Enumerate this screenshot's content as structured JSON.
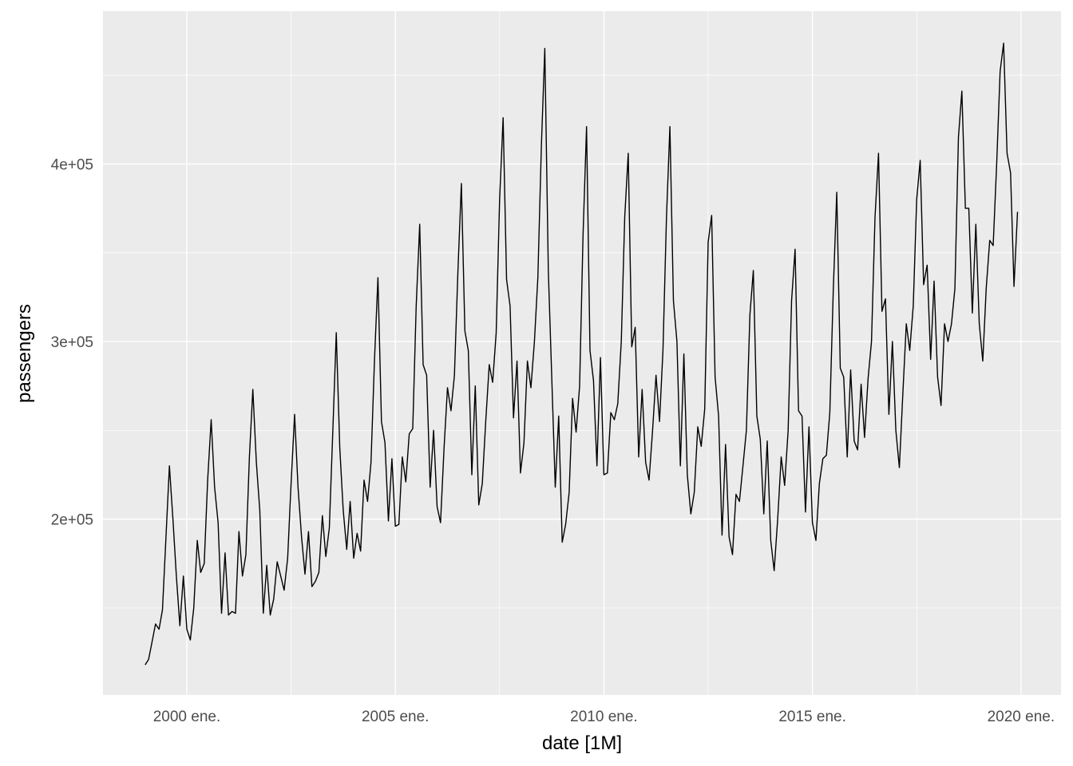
{
  "chart_data": {
    "type": "line",
    "xlabel": "date [1M]",
    "ylabel": "passengers",
    "x_tick_labels": [
      "2000 ene.",
      "2005 ene.",
      "2010 ene.",
      "2015 ene.",
      "2020 ene."
    ],
    "x_tick_years": [
      2000,
      2005,
      2010,
      2015,
      2020
    ],
    "y_tick_labels": [
      "2e+05",
      "3e+05",
      "4e+05"
    ],
    "y_tick_values": [
      200000,
      300000,
      400000
    ],
    "xlim": [
      1997.99,
      2020.96
    ],
    "ylim": [
      101000,
      486000
    ],
    "grid": true,
    "background": "#EBEBEB",
    "line_color": "#000000",
    "frequency": "monthly",
    "series_by_year": [
      {
        "year": 1999,
        "values": [
          118000,
          121000,
          131000,
          141000,
          138000,
          149000,
          190000,
          230000,
          200000,
          168000,
          140000,
          168000
        ]
      },
      {
        "year": 2000,
        "values": [
          138000,
          132000,
          150000,
          188000,
          170000,
          175000,
          222000,
          256000,
          218000,
          198000,
          147000,
          181000
        ]
      },
      {
        "year": 2001,
        "values": [
          146000,
          148000,
          147000,
          193000,
          168000,
          180000,
          235000,
          273000,
          232000,
          205000,
          147000,
          174000
        ]
      },
      {
        "year": 2002,
        "values": [
          146000,
          155000,
          176000,
          168000,
          160000,
          178000,
          220000,
          259000,
          218000,
          190000,
          169000,
          193000
        ]
      },
      {
        "year": 2003,
        "values": [
          162000,
          165000,
          170000,
          202000,
          179000,
          195000,
          250000,
          305000,
          240000,
          205000,
          183000,
          210000
        ]
      },
      {
        "year": 2004,
        "values": [
          178000,
          192000,
          182000,
          222000,
          210000,
          232000,
          290000,
          336000,
          255000,
          243000,
          199000,
          234000
        ]
      },
      {
        "year": 2005,
        "values": [
          196000,
          197000,
          235000,
          221000,
          248000,
          251000,
          320000,
          366000,
          287000,
          281000,
          218000,
          250000
        ]
      },
      {
        "year": 2006,
        "values": [
          207000,
          198000,
          240000,
          274000,
          261000,
          281000,
          340000,
          389000,
          306000,
          295000,
          225000,
          275000
        ]
      },
      {
        "year": 2007,
        "values": [
          208000,
          220000,
          255000,
          287000,
          277000,
          305000,
          380000,
          426000,
          335000,
          320000,
          257000,
          289000
        ]
      },
      {
        "year": 2008,
        "values": [
          226000,
          243000,
          289000,
          274000,
          300000,
          336000,
          410000,
          465000,
          340000,
          280000,
          218000,
          258000
        ]
      },
      {
        "year": 2009,
        "values": [
          187000,
          197000,
          215000,
          268000,
          249000,
          275000,
          360000,
          421000,
          295000,
          278000,
          230000,
          291000
        ]
      },
      {
        "year": 2010,
        "values": [
          225000,
          226000,
          260000,
          256000,
          265000,
          300000,
          370000,
          406000,
          297000,
          308000,
          235000,
          273000
        ]
      },
      {
        "year": 2011,
        "values": [
          232000,
          222000,
          250000,
          281000,
          255000,
          295000,
          370000,
          421000,
          323000,
          300000,
          230000,
          293000
        ]
      },
      {
        "year": 2012,
        "values": [
          225000,
          203000,
          215000,
          252000,
          241000,
          262000,
          356000,
          371000,
          280000,
          258000,
          191000,
          242000
        ]
      },
      {
        "year": 2013,
        "values": [
          190000,
          180000,
          214000,
          210000,
          230000,
          250000,
          315000,
          340000,
          258000,
          245000,
          203000,
          244000
        ]
      },
      {
        "year": 2014,
        "values": [
          188000,
          171000,
          200000,
          235000,
          219000,
          250000,
          323000,
          352000,
          261000,
          258000,
          204000,
          252000
        ]
      },
      {
        "year": 2015,
        "values": [
          198000,
          188000,
          220000,
          234000,
          236000,
          260000,
          330000,
          384000,
          285000,
          280000,
          235000,
          284000
        ]
      },
      {
        "year": 2016,
        "values": [
          244000,
          239000,
          276000,
          246000,
          279000,
          300000,
          370000,
          406000,
          317000,
          324000,
          259000,
          300000
        ]
      },
      {
        "year": 2017,
        "values": [
          250000,
          229000,
          270000,
          310000,
          295000,
          320000,
          380000,
          402000,
          332000,
          343000,
          290000,
          334000
        ]
      },
      {
        "year": 2018,
        "values": [
          280000,
          264000,
          310000,
          300000,
          310000,
          330000,
          415000,
          441000,
          375000,
          375000,
          316000,
          366000
        ]
      },
      {
        "year": 2019,
        "values": [
          310000,
          289000,
          330000,
          357000,
          354000,
          400000,
          452000,
          468000,
          406000,
          395000,
          331000,
          373000
        ]
      }
    ]
  }
}
